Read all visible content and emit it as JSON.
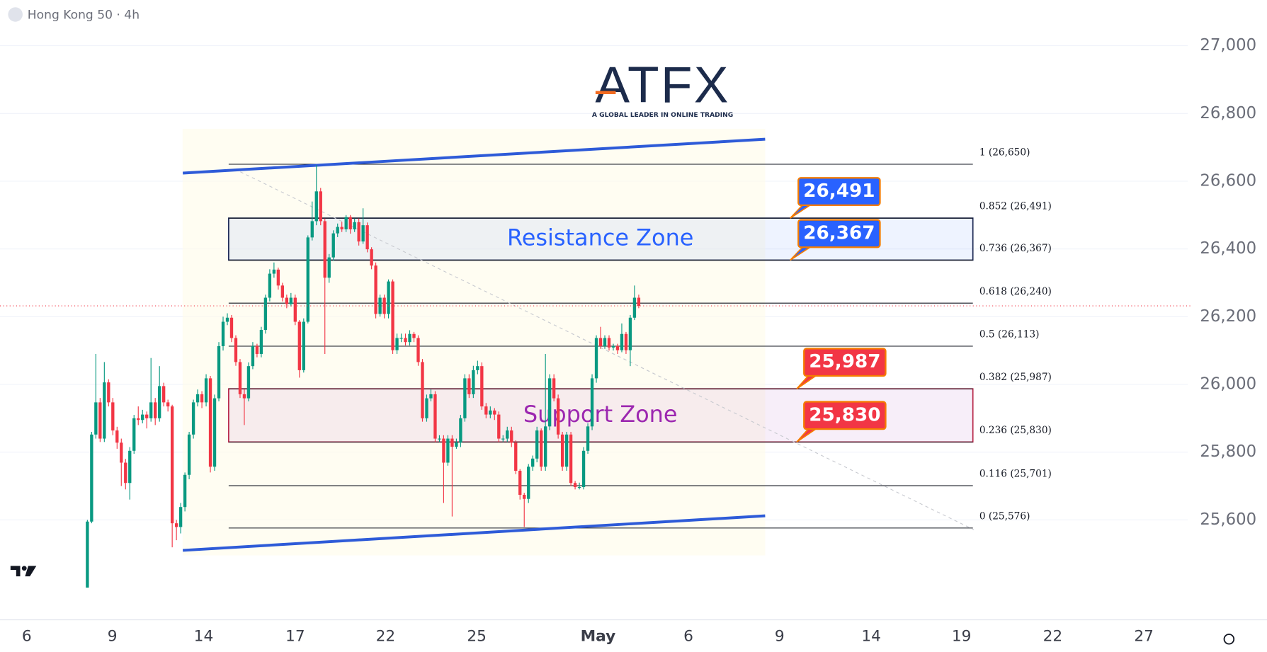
{
  "header": {
    "title": "Hong Kong 50 · 4h"
  },
  "logo": {
    "name": "ATFX",
    "tagline": "A GLOBAL LEADER IN ONLINE TRADING"
  },
  "chart_data": {
    "type": "candlestick",
    "x": [
      0,
      1,
      2,
      3,
      4,
      5,
      6,
      7,
      8,
      9,
      10,
      11,
      12,
      13,
      14,
      15,
      16,
      17,
      18,
      19,
      20,
      21,
      22,
      23,
      24,
      25,
      26,
      27,
      28,
      29,
      30,
      31,
      32,
      33,
      34,
      35,
      36,
      37,
      38,
      39,
      40,
      41,
      42,
      43,
      44,
      45,
      46,
      47,
      48,
      49,
      50,
      51,
      52,
      53,
      54,
      55,
      56,
      57,
      58,
      59,
      60,
      61,
      62,
      63,
      64,
      65,
      66,
      67,
      68,
      69,
      70,
      71,
      72,
      73,
      74,
      75,
      76,
      77,
      78,
      79,
      80,
      81,
      82,
      83,
      84,
      85,
      86,
      87,
      88,
      89,
      90,
      91,
      92,
      93,
      94,
      95,
      96,
      97,
      98,
      99,
      100,
      101,
      102,
      103,
      104,
      105,
      106,
      107,
      108,
      109,
      110,
      111,
      112,
      113,
      114,
      115,
      116,
      117,
      118,
      119,
      120,
      121,
      122,
      123,
      124,
      125,
      126,
      127,
      128,
      129,
      130
    ],
    "open": [
      25400,
      25595,
      25852,
      25947,
      25840,
      26006,
      25947,
      25864,
      25828,
      25769,
      25709,
      25804,
      25900,
      25895,
      25911,
      25900,
      25947,
      25900,
      25995,
      25947,
      25935,
      25590,
      25579,
      25638,
      25733,
      25852,
      25947,
      25971,
      25947,
      26018,
      25757,
      25959,
      26113,
      26185,
      26197,
      26137,
      26066,
      25971,
      25959,
      26054,
      26113,
      26090,
      26161,
      26256,
      26327,
      26339,
      26292,
      26256,
      26237,
      26256,
      26185,
      26042,
      26185,
      26434,
      26482,
      26570,
      26482,
      26315,
      26375,
      26446,
      26465,
      26458,
      26494,
      26458,
      26479,
      26422,
      26470,
      26399,
      26351,
      26208,
      26256,
      26208,
      26304,
      26101,
      26137,
      26137,
      26125,
      26149,
      26137,
      26066,
      25900,
      25959,
      25971,
      25840,
      25840,
      25769,
      25840,
      25816,
      25828,
      25900,
      26018,
      25971,
      26042,
      26054,
      25935,
      25911,
      25923,
      25911,
      25840,
      25840,
      25864,
      25828,
      25745,
      25674,
      25662,
      25757,
      25781,
      25864,
      25757,
      25876,
      26018,
      25959,
      25852,
      25757,
      25852,
      25709,
      25697,
      25697,
      25804,
      25876,
      26018,
      26137,
      26113,
      26137,
      26109,
      26113,
      26101,
      26149,
      26101,
      26197,
      26256
    ],
    "high": [
      25600,
      25860,
      26090,
      25960,
      26066,
      26015,
      25960,
      25875,
      25840,
      25780,
      25815,
      25910,
      25935,
      25925,
      25920,
      26078,
      25960,
      26054,
      26005,
      25955,
      25940,
      25600,
      25650,
      25740,
      25860,
      25955,
      25985,
      25980,
      26030,
      26025,
      25970,
      26125,
      26200,
      26210,
      26205,
      26145,
      26075,
      25985,
      26065,
      26125,
      26120,
      26170,
      26265,
      26340,
      26360,
      26345,
      26300,
      26265,
      26270,
      26265,
      26190,
      26195,
      26440,
      26540,
      26648,
      26580,
      26490,
      26385,
      26455,
      26475,
      26480,
      26500,
      26500,
      26490,
      26490,
      26520,
      26478,
      26405,
      26360,
      26265,
      26265,
      26310,
      26310,
      26150,
      26150,
      26150,
      26160,
      26155,
      26145,
      26075,
      25970,
      25985,
      25980,
      25850,
      25850,
      25850,
      25850,
      25840,
      25910,
      26030,
      26030,
      26055,
      26070,
      26065,
      25945,
      25935,
      25930,
      25920,
      25850,
      25875,
      25875,
      25835,
      25750,
      25680,
      25765,
      25790,
      25875,
      25870,
      26090,
      26030,
      26030,
      25970,
      25860,
      25860,
      25860,
      25715,
      25710,
      25815,
      25885,
      26030,
      26145,
      26170,
      26145,
      26145,
      26120,
      26120,
      26180,
      26155,
      26205,
      26292,
      26265
    ],
    "low": [
      25400,
      25590,
      25840,
      25830,
      25830,
      25935,
      25850,
      25810,
      25700,
      25690,
      25660,
      25795,
      25880,
      25885,
      25870,
      25890,
      25880,
      25890,
      25935,
      25920,
      25519,
      25540,
      25560,
      25625,
      25720,
      25840,
      25935,
      25930,
      25935,
      25740,
      25745,
      25950,
      26100,
      26175,
      26125,
      26055,
      25960,
      25880,
      25950,
      26045,
      26080,
      26080,
      26150,
      26245,
      26315,
      26280,
      26245,
      26225,
      26230,
      26175,
      26020,
      26035,
      26180,
      26425,
      26470,
      26470,
      26090,
      26300,
      26365,
      26435,
      26450,
      26450,
      26445,
      26450,
      26410,
      26415,
      26390,
      26340,
      26195,
      26200,
      26195,
      26195,
      26090,
      26090,
      26125,
      26115,
      26115,
      26125,
      26055,
      25890,
      25890,
      25950,
      25830,
      25830,
      25650,
      25760,
      25610,
      25810,
      25815,
      25890,
      25960,
      25960,
      26030,
      25925,
      25900,
      25900,
      25895,
      25830,
      25830,
      25830,
      25815,
      25735,
      25660,
      25579,
      25650,
      25745,
      25770,
      25745,
      25745,
      25865,
      25950,
      25840,
      25745,
      25745,
      25700,
      25690,
      25690,
      25690,
      25795,
      25865,
      26005,
      26105,
      26105,
      26100,
      26100,
      26090,
      26095,
      26090,
      26054,
      26190,
      26225
    ],
    "close": [
      25595,
      25852,
      25947,
      25840,
      26006,
      25947,
      25864,
      25828,
      25769,
      25709,
      25804,
      25900,
      25895,
      25911,
      25900,
      25947,
      25900,
      25995,
      25947,
      25935,
      25590,
      25579,
      25638,
      25733,
      25852,
      25947,
      25971,
      25947,
      26018,
      25757,
      25959,
      26113,
      26185,
      26197,
      26137,
      26066,
      25971,
      25959,
      26054,
      26113,
      26090,
      26161,
      26256,
      26327,
      26339,
      26292,
      26256,
      26237,
      26256,
      26185,
      26042,
      26185,
      26434,
      26482,
      26570,
      26482,
      26315,
      26375,
      26446,
      26465,
      26458,
      26494,
      26458,
      26479,
      26422,
      26470,
      26399,
      26351,
      26208,
      26256,
      26208,
      26304,
      26101,
      26137,
      26137,
      26125,
      26149,
      26137,
      26066,
      25900,
      25959,
      25971,
      25840,
      25840,
      25769,
      25840,
      25816,
      25828,
      25900,
      26018,
      25971,
      26042,
      26054,
      25935,
      25911,
      25923,
      25911,
      25840,
      25840,
      25864,
      25828,
      25745,
      25674,
      25662,
      25757,
      25781,
      25864,
      25757,
      25876,
      26018,
      25959,
      25852,
      25757,
      25852,
      25709,
      25697,
      25697,
      25804,
      25876,
      26018,
      26137,
      26113,
      26137,
      26109,
      26113,
      26101,
      26149,
      26101,
      26197,
      26256,
      26232
    ],
    "up_color": "#089981",
    "down_color": "#f23645",
    "xlim": [
      -20.6,
      258.5
    ],
    "xticks": [
      {
        "value": -14.3,
        "label": "6"
      },
      {
        "value": 5.9,
        "label": "9"
      },
      {
        "value": 27.4,
        "label": "14"
      },
      {
        "value": 49.0,
        "label": "17"
      },
      {
        "value": 70.3,
        "label": "22"
      },
      {
        "value": 91.8,
        "label": "25"
      },
      {
        "value": 120.4,
        "label": "May"
      },
      {
        "value": 141.7,
        "label": "6"
      },
      {
        "value": 163.2,
        "label": "9"
      },
      {
        "value": 184.8,
        "label": "14"
      },
      {
        "value": 206.1,
        "label": "19"
      },
      {
        "value": 227.6,
        "label": "22"
      },
      {
        "value": 249.1,
        "label": "27"
      }
    ],
    "ylim": [
      25305,
      27135
    ],
    "yticks": [
      {
        "value": 25600,
        "label": "25,600"
      },
      {
        "value": 25800,
        "label": "25,800"
      },
      {
        "value": 26000,
        "label": "26,000"
      },
      {
        "value": 26200,
        "label": "26,200"
      },
      {
        "value": 26400,
        "label": "26,400"
      },
      {
        "value": 26600,
        "label": "26,600"
      },
      {
        "value": 26800,
        "label": "26,800"
      },
      {
        "value": 27000,
        "label": "27,000"
      }
    ],
    "grid": true,
    "fib_levels": [
      {
        "value": 26650,
        "label": "1 (26,650)"
      },
      {
        "value": 26491,
        "label": "0.852 (26,491)"
      },
      {
        "value": 26367,
        "label": "0.736 (26,367)"
      },
      {
        "value": 26240,
        "label": "0.618 (26,240)"
      },
      {
        "value": 26113,
        "label": "0.5 (26,113)"
      },
      {
        "value": 25987,
        "label": "0.382 (25,987)"
      },
      {
        "value": 25830,
        "label": "0.236 (25,830)"
      },
      {
        "value": 25701,
        "label": "0.116 (25,701)"
      },
      {
        "value": 25576,
        "label": "0 (25,576)"
      }
    ],
    "zones": [
      {
        "name": "Resistance Zone",
        "low": 26367,
        "high": 26491,
        "color": "#2962ff"
      },
      {
        "name": "Support Zone",
        "low": 25830,
        "high": 25987,
        "color": "#9c27b0"
      }
    ],
    "price_labels": [
      {
        "value": 26491,
        "label": "26,491",
        "color": "#2962ff"
      },
      {
        "value": 26367,
        "label": "26,367",
        "color": "#2962ff"
      },
      {
        "value": 25987,
        "label": "25,987",
        "color": "#f23645"
      },
      {
        "value": 25830,
        "label": "25,830",
        "color": "#f23645"
      }
    ],
    "trendlines": [
      {
        "x": [
          22.5,
          159.8
        ],
        "y": [
          26624,
          26724
        ],
        "color": "#2e5bd8"
      },
      {
        "x": [
          22.5,
          159.8
        ],
        "y": [
          25510,
          25612
        ],
        "color": "#2e5bd8"
      }
    ],
    "diagonal": {
      "x": [
        34.7,
        209
      ],
      "y": [
        26636,
        25571
      ]
    }
  }
}
